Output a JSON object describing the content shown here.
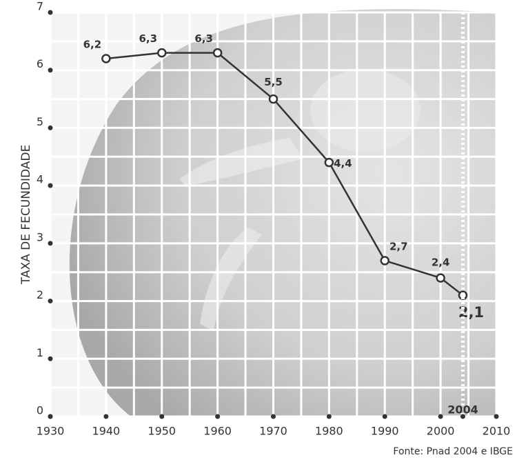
{
  "chart_data": {
    "type": "line",
    "x": [
      1940,
      1950,
      1960,
      1970,
      1980,
      1990,
      2000,
      2004
    ],
    "series": [
      {
        "color": "#333333",
        "values": [
          6.2,
          6.3,
          6.3,
          5.5,
          4.4,
          2.7,
          2.4,
          2.1
        ],
        "value_labels": [
          "6,2",
          "6,3",
          "6,3",
          "5,5",
          "4,4",
          "2,7",
          "2,4",
          "2,1"
        ]
      }
    ],
    "xlim": [
      1930,
      2010
    ],
    "xticks": [
      1930,
      1940,
      1950,
      1960,
      1970,
      1980,
      1990,
      2000,
      2010
    ],
    "ylim": [
      0,
      7
    ],
    "yticks": [
      0,
      1,
      2,
      3,
      4,
      5,
      6,
      7
    ],
    "ylabel": "TAXA DE FECUNDIDADE",
    "annotation": "2004",
    "source": "Fonte: Pnad 2004 e IBGE",
    "grid": true
  }
}
